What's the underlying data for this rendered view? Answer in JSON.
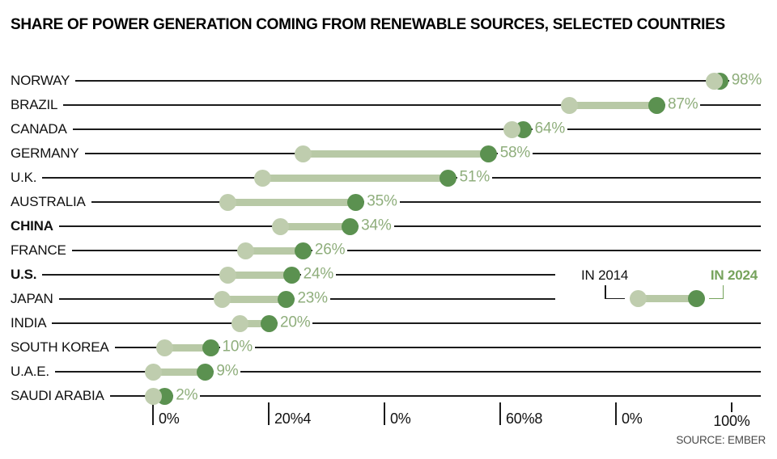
{
  "title": "SHARE OF POWER GENERATION COMING FROM RENEWABLE SOURCES, SELECTED COUNTRIES",
  "source": "SOURCE: EMBER",
  "legend": {
    "in_2014_label": "IN 2014",
    "in_2024_label": "IN 2024"
  },
  "colors": {
    "dot_2014": "#bfcdae",
    "band": "#b8c9a6",
    "dot_2024": "#5b9150",
    "value_label": "#8fae7c",
    "row_line": "#1b1b1b",
    "legend_2024_text": "#76a35c",
    "axis_text": "#111111",
    "source_text": "#4a4a4a"
  },
  "chart_data": {
    "type": "dumbbell",
    "unit": "percent share of power generation",
    "series_names": [
      "IN 2014",
      "IN 2024"
    ],
    "x_axis": {
      "range": [
        0,
        100
      ],
      "tick_values": [
        0,
        20,
        40,
        60,
        80,
        100
      ],
      "tick_labels_as_rendered": [
        "0%",
        "20%4",
        "0%",
        "60%8",
        "0%",
        "100%"
      ]
    },
    "rows": [
      {
        "country": "NORWAY",
        "in_2014": 97,
        "in_2024": 98,
        "value_label": "98%",
        "bold": false,
        "line_short": false
      },
      {
        "country": "BRAZIL",
        "in_2014": 72,
        "in_2024": 87,
        "value_label": "87%",
        "bold": false,
        "line_short": false
      },
      {
        "country": "CANADA",
        "in_2014": 62,
        "in_2024": 64,
        "value_label": "64%",
        "bold": false,
        "line_short": false
      },
      {
        "country": "GERMANY",
        "in_2014": 26,
        "in_2024": 58,
        "value_label": "58%",
        "bold": false,
        "line_short": false
      },
      {
        "country": "U.K.",
        "in_2014": 19,
        "in_2024": 51,
        "value_label": "51%",
        "bold": false,
        "line_short": false
      },
      {
        "country": "AUSTRALIA",
        "in_2014": 13,
        "in_2024": 35,
        "value_label": "35%",
        "bold": false,
        "line_short": false
      },
      {
        "country": "CHINA",
        "in_2014": 22,
        "in_2024": 34,
        "value_label": "34%",
        "bold": true,
        "line_short": false
      },
      {
        "country": "FRANCE",
        "in_2014": 16,
        "in_2024": 26,
        "value_label": "26%",
        "bold": false,
        "line_short": false
      },
      {
        "country": "U.S.",
        "in_2014": 13,
        "in_2024": 24,
        "value_label": "24%",
        "bold": true,
        "line_short": true
      },
      {
        "country": "JAPAN",
        "in_2014": 12,
        "in_2024": 23,
        "value_label": "23%",
        "bold": false,
        "line_short": true
      },
      {
        "country": "INDIA",
        "in_2014": 15,
        "in_2024": 20,
        "value_label": "20%",
        "bold": false,
        "line_short": false
      },
      {
        "country": "SOUTH KOREA",
        "in_2014": 2,
        "in_2024": 10,
        "value_label": "10%",
        "bold": false,
        "line_short": false
      },
      {
        "country": "U.A.E.",
        "in_2014": 0,
        "in_2024": 9,
        "value_label": "9%",
        "bold": false,
        "line_short": false
      },
      {
        "country": "SAUDI ARABIA",
        "in_2014": 0,
        "in_2024": 2,
        "value_label": "2%",
        "bold": false,
        "line_short": false
      }
    ]
  }
}
